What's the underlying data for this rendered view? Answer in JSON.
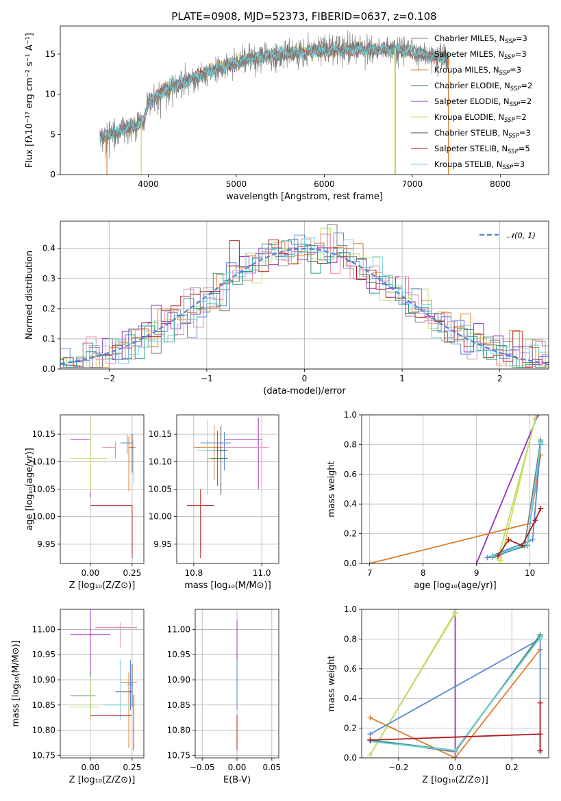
{
  "figure": {
    "title": "PLATE=0908, MJD=52373, FIBERID=0637, z=0.108"
  },
  "colors": {
    "ChabrierMILES": "#7f7f7f",
    "SalpeterMILES": "#9e9e9e",
    "KroupaMILES": "#e07b2a",
    "ChabrierELODIE": "#3a7a4a",
    "SalpeterELODIE": "#9b30b8",
    "KroupaELODIE": "#d8d84a",
    "ChabrierSTELIB": "#444444",
    "SalpeterSTELIB": "#b01a1a",
    "KroupaSTELIB": "#6fd0d8",
    "blue": "#5b86d6",
    "lime": "#b8e070",
    "pink": "#e88aa8",
    "teal": "#2a9a8a"
  },
  "chart_data": [
    {
      "id": "spectrum",
      "type": "line",
      "xlabel": "wavelength [Angstrom, rest frame]",
      "ylabel": "Flux [fλ10⁻¹⁷ erg cm⁻² s⁻¹ A⁻¹]",
      "xlim": [
        3000,
        8550
      ],
      "ylim": [
        0,
        18.5
      ],
      "xticks": [
        4000,
        5000,
        6000,
        7000,
        8000
      ],
      "yticks": [
        0,
        5,
        10,
        15
      ],
      "legend_position": "right",
      "legend": [
        {
          "name": "Chabrier MILES, N_SSP=3",
          "base": "Chabrier MILES, N",
          "sub": "SSP",
          "tail": "=3",
          "color": "ChabrierMILES"
        },
        {
          "name": "Salpeter MILES, N_SSP=3",
          "base": "Salpeter MILES, N",
          "sub": "SSP",
          "tail": "=3",
          "color": "SalpeterMILES"
        },
        {
          "name": "Kroupa MILES, N_SSP=3",
          "base": "Kroupa MILES, N",
          "sub": "SSP",
          "tail": "=3",
          "color": "KroupaMILES"
        },
        {
          "name": "Chabrier ELODIE, N_SSP=2",
          "base": "Chabrier ELODIE, N",
          "sub": "SSP",
          "tail": "=2",
          "color": "ChabrierELODIE"
        },
        {
          "name": "Salpeter ELODIE, N_SSP=2",
          "base": "Salpeter ELODIE, N",
          "sub": "SSP",
          "tail": "=2",
          "color": "SalpeterELODIE"
        },
        {
          "name": "Kroupa ELODIE, N_SSP=2",
          "base": "Kroupa ELODIE, N",
          "sub": "SSP",
          "tail": "=2",
          "color": "KroupaELODIE"
        },
        {
          "name": "Chabrier STELIB, N_SSP=3",
          "base": "Chabrier STELIB, N",
          "sub": "SSP",
          "tail": "=3",
          "color": "ChabrierSTELIB"
        },
        {
          "name": "Salpeter STELIB, N_SSP=5",
          "base": "Salpeter STELIB, N",
          "sub": "SSP",
          "tail": "=5",
          "color": "SalpeterSTELIB"
        },
        {
          "name": "Kroupa STELIB, N_SSP=3",
          "base": "Kroupa STELIB, N",
          "sub": "SSP",
          "tail": "=3",
          "color": "KroupaSTELIB"
        }
      ],
      "continuum": [
        [
          3450,
          4.5
        ],
        [
          3600,
          5.2
        ],
        [
          3800,
          6.0
        ],
        [
          3950,
          6.5
        ],
        [
          4000,
          9.0
        ],
        [
          4200,
          10.5
        ],
        [
          4400,
          11.5
        ],
        [
          4600,
          12.5
        ],
        [
          4800,
          13.3
        ],
        [
          5000,
          14.0
        ],
        [
          5200,
          14.5
        ],
        [
          5400,
          14.9
        ],
        [
          5600,
          15.1
        ],
        [
          5800,
          15.3
        ],
        [
          6000,
          15.5
        ],
        [
          6200,
          15.5
        ],
        [
          6400,
          15.6
        ],
        [
          6600,
          15.5
        ],
        [
          6800,
          15.6
        ],
        [
          7000,
          15.3
        ],
        [
          7200,
          14.7
        ],
        [
          7420,
          14.5
        ]
      ]
    },
    {
      "id": "residuals",
      "type": "histogram",
      "xlabel": "(data-model)/error",
      "ylabel": "Normed distribution",
      "xlim": [
        -2.5,
        2.5
      ],
      "ylim": [
        0,
        0.49
      ],
      "xticks": [
        -2,
        -1,
        0,
        1,
        2
      ],
      "yticks": [
        0.0,
        0.1,
        0.2,
        0.3,
        0.4
      ],
      "legend": [
        {
          "name": "N(0,1)",
          "math": "𝒩(0, 1)",
          "style": "dashed",
          "color": "blue"
        }
      ],
      "legend_position": "top-right"
    },
    {
      "id": "age-Z",
      "type": "errorbar",
      "xlabel": "Z [log₁₀(Z/Z⊙)]",
      "ylabel": "age  [log₁₀(age/yr)]",
      "xlim": [
        -0.18,
        0.32
      ],
      "ylim": [
        9.915,
        10.185
      ],
      "xticks": [
        0.0,
        0.25
      ],
      "yticks": [
        9.95,
        10.0,
        10.05,
        10.1,
        10.15
      ],
      "points": [
        {
          "x": 0.0,
          "xerr": [
            0.12,
            0.0
          ],
          "y": 10.14,
          "yerr": [
            0.105,
            0.04
          ],
          "color": "SalpeterELODIE"
        },
        {
          "x": 0.15,
          "xerr": [
            0.08,
            0.0
          ],
          "y": 10.126,
          "yerr": [
            0.02,
            0.01
          ],
          "color": "pink"
        },
        {
          "x": 0.23,
          "xerr": [
            0.0,
            0.04
          ],
          "y": 10.126,
          "yerr": [
            0.08,
            0.02
          ],
          "color": "KroupaMILES"
        },
        {
          "x": 0.22,
          "xerr": [
            0.04,
            0.03
          ],
          "y": 10.134,
          "yerr": [
            0.02,
            0.015
          ],
          "color": "blue"
        },
        {
          "x": 0.25,
          "xerr": [
            0.0,
            0.0
          ],
          "y": 10.13,
          "yerr": [
            0.05,
            0.02
          ],
          "color": "ChabrierSTELIB"
        },
        {
          "x": 0.0,
          "xerr": [
            0.12,
            0.1
          ],
          "y": 10.106,
          "yerr": [
            0.015,
            0.075
          ],
          "color": "lime"
        },
        {
          "x": 0.0,
          "xerr": [
            0.0,
            0.0
          ],
          "y": 10.106,
          "yerr": [
            0.06,
            0.0
          ],
          "color": "KroupaELODIE"
        },
        {
          "x": 0.0,
          "xerr": [
            0.0,
            0.25
          ],
          "y": 10.02,
          "yerr": [
            0.0,
            0.0
          ],
          "color": "SalpeterSTELIB"
        },
        {
          "x": 0.25,
          "xerr": [
            0.0,
            0.0
          ],
          "y": 10.02,
          "yerr": [
            0.095,
            0.0
          ],
          "color": "SalpeterSTELIB"
        },
        {
          "x": 0.26,
          "xerr": [
            0.0,
            0.0
          ],
          "y": 10.12,
          "yerr": [
            0.06,
            0.02
          ],
          "color": "KroupaSTELIB"
        }
      ]
    },
    {
      "id": "age-mass",
      "type": "errorbar",
      "xlabel": "mass [log₁₀(M/M⊙)]",
      "xlim": [
        10.75,
        11.05
      ],
      "ylim": [
        9.915,
        10.185
      ],
      "xticks": [
        10.8,
        11.0
      ],
      "yticks": [
        9.95,
        10.0,
        10.05,
        10.1,
        10.15
      ],
      "points": [
        {
          "x": 10.99,
          "xerr": [
            0.1,
            0.01
          ],
          "y": 10.14,
          "yerr": [
            0.09,
            0.04
          ],
          "color": "SalpeterELODIE"
        },
        {
          "x": 11.0,
          "xerr": [
            0.12,
            0.02
          ],
          "y": 10.126,
          "yerr": [
            0.07,
            0.015
          ],
          "color": "pink"
        },
        {
          "x": 10.89,
          "xerr": [
            0.07,
            0.02
          ],
          "y": 10.134,
          "yerr": [
            0.05,
            0.02
          ],
          "color": "blue"
        },
        {
          "x": 10.86,
          "xerr": [
            0.06,
            0.02
          ],
          "y": 10.126,
          "yerr": [
            0.06,
            0.04
          ],
          "color": "KroupaMILES"
        },
        {
          "x": 10.88,
          "xerr": [
            0.03,
            0.02
          ],
          "y": 10.12,
          "yerr": [
            0.08,
            0.045
          ],
          "color": "ChabrierSTELIB"
        },
        {
          "x": 10.84,
          "xerr": [
            0.0,
            0.03
          ],
          "y": 10.106,
          "yerr": [
            0.035,
            0.07
          ],
          "color": "KroupaELODIE"
        },
        {
          "x": 10.87,
          "xerr": [
            0.02,
            0.03
          ],
          "y": 10.106,
          "yerr": [
            0.05,
            0.05
          ],
          "color": "ChabrierELODIE"
        },
        {
          "x": 10.84,
          "xerr": [
            0.03,
            0.03
          ],
          "y": 10.12,
          "yerr": [
            0.08,
            0.02
          ],
          "color": "KroupaSTELIB"
        },
        {
          "x": 10.82,
          "xerr": [
            0.04,
            0.04
          ],
          "y": 10.02,
          "yerr": [
            0.095,
            0.03
          ],
          "color": "SalpeterSTELIB"
        }
      ]
    },
    {
      "id": "massweight-age",
      "type": "line",
      "xlabel": "age  [log₁₀(age/yr)]",
      "ylabel": "mass weight",
      "xlim": [
        6.85,
        10.35
      ],
      "ylim": [
        0.0,
        1.0
      ],
      "xticks": [
        7,
        8,
        9,
        10
      ],
      "yticks": [
        0.0,
        0.2,
        0.4,
        0.6,
        0.8,
        1.0
      ],
      "series": [
        {
          "color": "SalpeterELODIE",
          "x": [
            9.0,
            10.15
          ],
          "y": [
            0.0,
            1.0
          ]
        },
        {
          "color": "KroupaELODIE",
          "x": [
            9.45,
            10.1
          ],
          "y": [
            0.02,
            0.98
          ]
        },
        {
          "color": "lime",
          "x": [
            9.4,
            10.1
          ],
          "y": [
            0.03,
            0.97
          ]
        },
        {
          "color": "KroupaMILES",
          "x": [
            7.0,
            10.0,
            10.2
          ],
          "y": [
            0.0,
            0.27,
            0.73
          ]
        },
        {
          "color": "blue",
          "x": [
            9.2,
            10.05,
            10.2
          ],
          "y": [
            0.04,
            0.16,
            0.8
          ]
        },
        {
          "color": "ChabrierMILES",
          "x": [
            9.3,
            9.9,
            10.2
          ],
          "y": [
            0.04,
            0.12,
            0.83
          ]
        },
        {
          "color": "teal",
          "x": [
            9.3,
            9.95,
            10.2
          ],
          "y": [
            0.05,
            0.12,
            0.82
          ]
        },
        {
          "color": "KroupaSTELIB",
          "x": [
            9.3,
            9.95,
            10.2
          ],
          "y": [
            0.05,
            0.13,
            0.81
          ]
        },
        {
          "color": "SalpeterSTELIB",
          "x": [
            9.4,
            9.6,
            9.85,
            10.1,
            10.2
          ],
          "y": [
            0.05,
            0.16,
            0.12,
            0.29,
            0.37
          ]
        }
      ]
    },
    {
      "id": "mass-Z",
      "type": "errorbar",
      "xlabel": "Z [log₁₀(Z/Z⊙)]",
      "ylabel": "mass [log₁₀(M/M⊙)]",
      "xlim": [
        -0.18,
        0.32
      ],
      "ylim": [
        10.745,
        11.04
      ],
      "xticks": [
        0.0,
        0.25
      ],
      "yticks": [
        10.75,
        10.8,
        10.85,
        10.9,
        10.95,
        11.0
      ],
      "points": [
        {
          "x": 0.0,
          "xerr": [
            0.12,
            0.12
          ],
          "y": 10.99,
          "yerr": [
            0.17,
            0.13
          ],
          "color": "SalpeterELODIE"
        },
        {
          "x": 0.18,
          "xerr": [
            0.15,
            0.1
          ],
          "y": 11.004,
          "yerr": [
            0.04,
            0.01
          ],
          "color": "pink"
        },
        {
          "x": 0.23,
          "xerr": [
            0.05,
            0.05
          ],
          "y": 10.895,
          "yerr": [
            0.13,
            0.02
          ],
          "color": "KroupaMILES"
        },
        {
          "x": 0.24,
          "xerr": [
            0.02,
            0.02
          ],
          "y": 10.89,
          "yerr": [
            0.05,
            0.05
          ],
          "color": "blue"
        },
        {
          "x": 0.25,
          "xerr": [
            0.1,
            0.0
          ],
          "y": 10.876,
          "yerr": [
            0.03,
            0.055
          ],
          "color": "ChabrierSTELIB"
        },
        {
          "x": 0.0,
          "xerr": [
            0.12,
            0.03
          ],
          "y": 10.868,
          "yerr": [
            0.04,
            0.05
          ],
          "color": "ChabrierELODIE"
        },
        {
          "x": 0.0,
          "xerr": [
            0.12,
            0.05
          ],
          "y": 10.846,
          "yerr": [
            0.03,
            0.06
          ],
          "color": "lime"
        },
        {
          "x": 0.18,
          "xerr": [
            0.1,
            0.05
          ],
          "y": 10.85,
          "yerr": [
            0.03,
            0.09
          ],
          "color": "KroupaSTELIB"
        },
        {
          "x": 0.0,
          "xerr": [
            0.0,
            0.25
          ],
          "y": 10.829,
          "yerr": [
            0.0,
            0.0
          ],
          "color": "SalpeterSTELIB"
        },
        {
          "x": 0.26,
          "xerr": [
            0.0,
            0.0
          ],
          "y": 10.82,
          "yerr": [
            0.06,
            0.05
          ],
          "color": "SalpeterSTELIB"
        }
      ]
    },
    {
      "id": "mass-EBV",
      "type": "errorbar",
      "xlabel": "E(B-V)",
      "xlim": [
        -0.06,
        0.06
      ],
      "ylim": [
        10.745,
        11.04
      ],
      "xticks": [
        -0.05,
        0.0,
        0.05
      ],
      "yticks": [
        10.75,
        10.8,
        10.85,
        10.9,
        10.95,
        11.0
      ],
      "points": [
        {
          "x": 0.0,
          "xerr": [
            0.0,
            0.0
          ],
          "y": 10.99,
          "yerr": [
            0.13,
            0.03
          ],
          "color": "SalpeterELODIE"
        },
        {
          "x": 0.0,
          "xerr": [
            0.0,
            0.0
          ],
          "y": 10.89,
          "yerr": [
            0.05,
            0.05
          ],
          "color": "blue"
        },
        {
          "x": 0.0,
          "xerr": [
            0.0,
            0.0
          ],
          "y": 10.8,
          "yerr": [
            0.04,
            0.03
          ],
          "color": "SalpeterSTELIB"
        }
      ]
    },
    {
      "id": "massweight-Z",
      "type": "line",
      "xlabel": "Z [log₁₀(Z/Z⊙)]",
      "ylabel": "mass weight",
      "xlim": [
        -0.33,
        0.33
      ],
      "ylim": [
        0.0,
        1.0
      ],
      "xticks": [
        -0.2,
        0.0,
        0.2
      ],
      "yticks": [
        0.0,
        0.2,
        0.4,
        0.6,
        0.8,
        1.0
      ],
      "series": [
        {
          "color": "SalpeterELODIE",
          "x": [
            0.0,
            0.0
          ],
          "y": [
            0.0,
            1.0
          ]
        },
        {
          "color": "KroupaELODIE",
          "x": [
            -0.3,
            0.0
          ],
          "y": [
            0.02,
            0.98
          ]
        },
        {
          "color": "lime",
          "x": [
            -0.3,
            0.0
          ],
          "y": [
            0.02,
            0.97
          ]
        },
        {
          "color": "KroupaMILES",
          "x": [
            -0.3,
            0.0,
            0.3
          ],
          "y": [
            0.27,
            0.0,
            0.73
          ]
        },
        {
          "color": "blue",
          "x": [
            -0.3,
            0.3,
            0.3
          ],
          "y": [
            0.16,
            0.8,
            0.04
          ]
        },
        {
          "color": "ChabrierMILES",
          "x": [
            -0.3,
            0.0,
            0.3
          ],
          "y": [
            0.12,
            0.04,
            0.83
          ]
        },
        {
          "color": "teal",
          "x": [
            -0.3,
            0.0,
            0.3
          ],
          "y": [
            0.12,
            0.05,
            0.82
          ]
        },
        {
          "color": "KroupaSTELIB",
          "x": [
            -0.3,
            0.0,
            0.3
          ],
          "y": [
            0.11,
            0.05,
            0.81
          ]
        },
        {
          "color": "SalpeterSTELIB",
          "x": [
            -0.3,
            0.3,
            0.3
          ],
          "y": [
            0.12,
            0.16,
            0.05
          ]
        },
        {
          "color": "SalpeterSTELIB",
          "x": [
            0.3,
            0.3
          ],
          "y": [
            0.05,
            0.37
          ]
        }
      ]
    }
  ]
}
